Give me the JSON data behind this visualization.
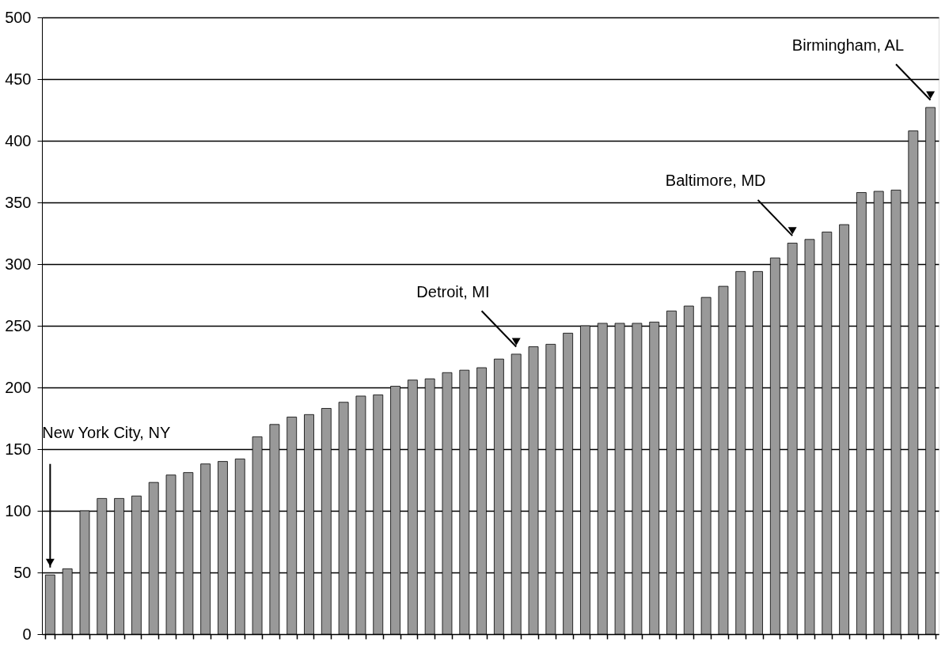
{
  "chart_data": {
    "type": "bar",
    "categories": [
      null,
      null,
      null,
      null,
      null,
      null,
      null,
      null,
      null,
      null,
      null,
      null,
      null,
      null,
      null,
      null,
      null,
      null,
      null,
      null,
      null,
      null,
      null,
      null,
      null,
      null,
      null,
      null,
      null,
      null,
      null,
      null,
      null,
      null,
      null,
      null,
      null,
      null,
      null,
      null,
      null,
      null,
      null,
      null,
      null,
      null,
      null,
      null,
      null,
      null,
      null,
      null
    ],
    "values": [
      48,
      53,
      100,
      110,
      110,
      112,
      123,
      129,
      131,
      138,
      140,
      142,
      160,
      170,
      176,
      178,
      183,
      188,
      193,
      194,
      201,
      206,
      207,
      212,
      214,
      216,
      223,
      227,
      233,
      235,
      244,
      250,
      252,
      252,
      252,
      253,
      262,
      266,
      273,
      282,
      294,
      294,
      305,
      317,
      320,
      326,
      332,
      358,
      359,
      360,
      408,
      427
    ],
    "color": "#999999",
    "ylim": [
      0,
      500
    ],
    "yticks": [
      0,
      50,
      100,
      150,
      200,
      250,
      300,
      350,
      400,
      450,
      500
    ],
    "grid": "y",
    "tick_labels": "y",
    "annotations": [
      "New York City, NY",
      "Detroit, MI",
      "Baltimore, MD",
      "Birmingham, AL"
    ]
  }
}
